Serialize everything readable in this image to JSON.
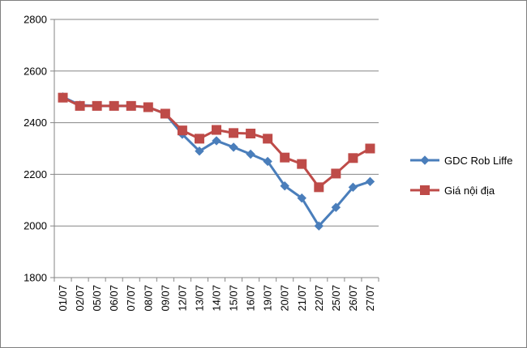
{
  "chart_data": {
    "type": "line",
    "title": "",
    "xlabel": "",
    "ylabel": "",
    "categories": [
      "01/07",
      "02/07",
      "05/07",
      "06/07",
      "07/07",
      "08/07",
      "09/07",
      "12/07",
      "13/07",
      "14/07",
      "15/07",
      "16/07",
      "19/07",
      "20/07",
      "21/07",
      "22/07",
      "25/07",
      "26/07",
      "27/07"
    ],
    "ylim": [
      1800,
      2800
    ],
    "yticks": [
      1800,
      2000,
      2200,
      2400,
      2600,
      2800
    ],
    "grid": "horizontal",
    "legend_position": "right",
    "series": [
      {
        "name": "GDC Rob Liffe",
        "color": "#4a7ebb",
        "marker": "diamond",
        "values": [
          2500,
          2468,
          2465,
          2465,
          2465,
          2460,
          2435,
          2355,
          2290,
          2330,
          2305,
          2278,
          2250,
          2155,
          2108,
          2000,
          2072,
          2150,
          2172
        ]
      },
      {
        "name": "Giá nội địa",
        "color": "#be4b48",
        "marker": "square",
        "values": [
          2497,
          2465,
          2465,
          2465,
          2465,
          2460,
          2435,
          2370,
          2338,
          2372,
          2360,
          2358,
          2338,
          2265,
          2240,
          2150,
          2203,
          2263,
          2300
        ]
      }
    ]
  }
}
